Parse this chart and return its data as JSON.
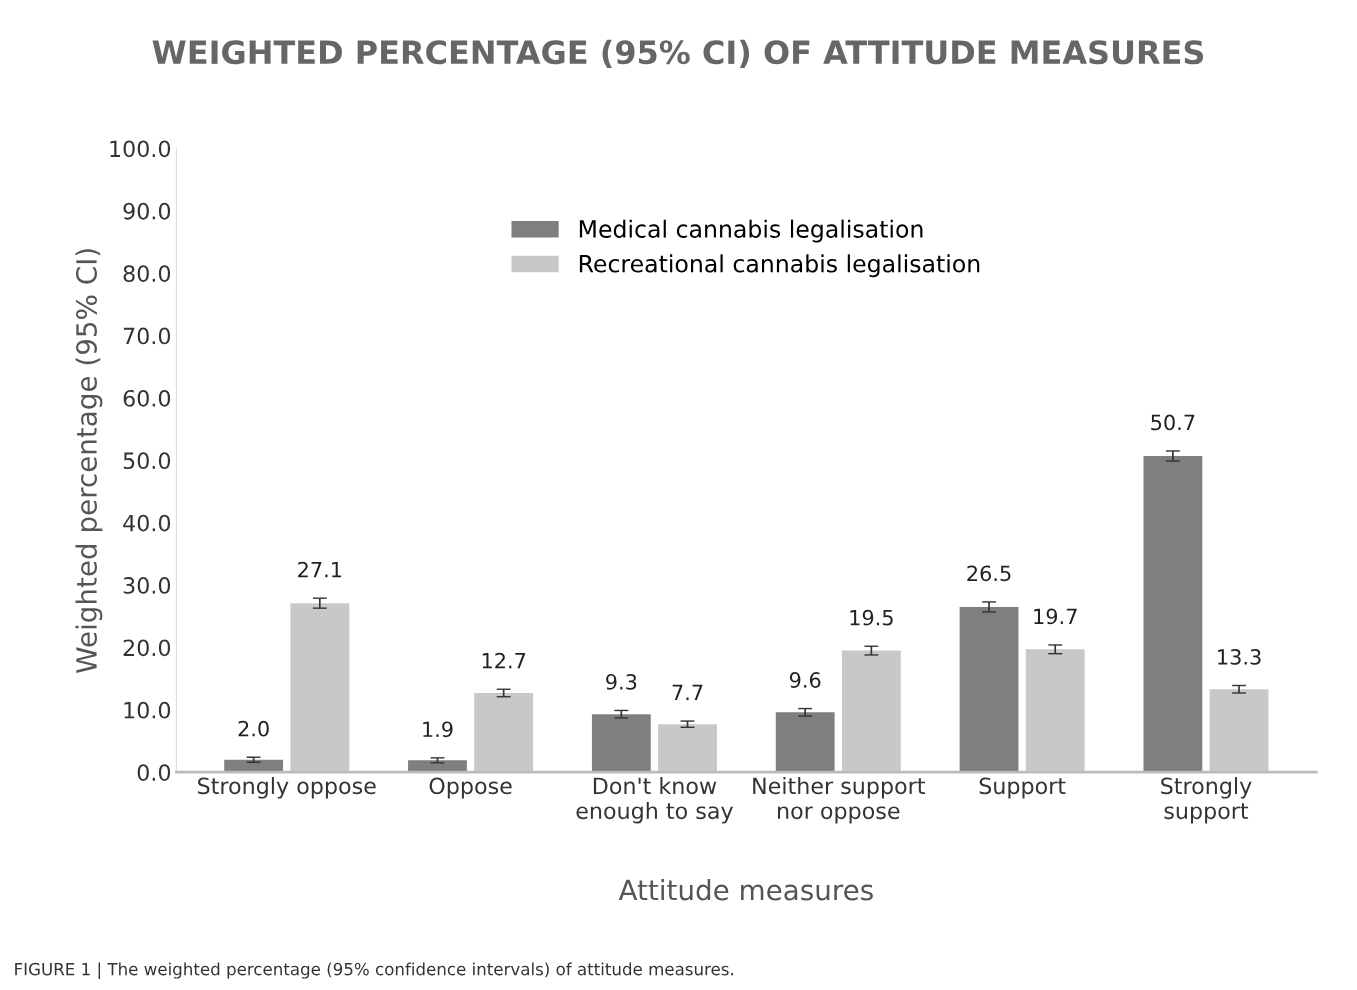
{
  "chart_data": {
    "type": "bar",
    "title": "WEIGHTED PERCENTAGE (95% CI) OF ATTITUDE MEASURES",
    "xlabel": "Attitude measures",
    "ylabel": "Weighted percentage (95% CI)",
    "categories": [
      "Strongly oppose",
      "Oppose",
      "Don't know\nenough to say",
      "Neither support\nnor oppose",
      "Support",
      "Strongly\nsupport"
    ],
    "series": [
      {
        "name": "Medical cannabis legalisation",
        "color": "#7f7f7f",
        "values": [
          2.0,
          1.9,
          9.3,
          9.6,
          26.5,
          50.7
        ],
        "errors": [
          0.4,
          0.4,
          0.6,
          0.6,
          0.8,
          0.8
        ],
        "value_labels": [
          "2.0",
          "1.9",
          "9.3",
          "9.6",
          "26.5",
          "50.7"
        ]
      },
      {
        "name": "Recreational cannabis legalisation",
        "color": "#c8c8c8",
        "values": [
          27.1,
          12.7,
          7.7,
          19.5,
          19.7,
          13.3
        ],
        "errors": [
          0.8,
          0.6,
          0.5,
          0.7,
          0.7,
          0.6
        ],
        "value_labels": [
          "27.1",
          "12.7",
          "7.7",
          "19.5",
          "19.7",
          "13.3"
        ]
      }
    ],
    "ylim": [
      0,
      100
    ],
    "yticks": [
      {
        "value": 0,
        "label": "0.0"
      },
      {
        "value": 10,
        "label": "10.0"
      },
      {
        "value": 20,
        "label": "20.0"
      },
      {
        "value": 30,
        "label": "30.0"
      },
      {
        "value": 40,
        "label": "40.0"
      },
      {
        "value": 50,
        "label": "50.0"
      },
      {
        "value": 60,
        "label": "60.0"
      },
      {
        "value": 70,
        "label": "70.0"
      },
      {
        "value": 80,
        "label": "80.0"
      },
      {
        "value": 90,
        "label": "90.0"
      },
      {
        "value": 100,
        "label": "100.0"
      }
    ],
    "grid": false,
    "legend": "top",
    "annotations": [
      "FIGURE 1 | The weighted percentage (95% confidence intervals) of attitude measures."
    ]
  }
}
